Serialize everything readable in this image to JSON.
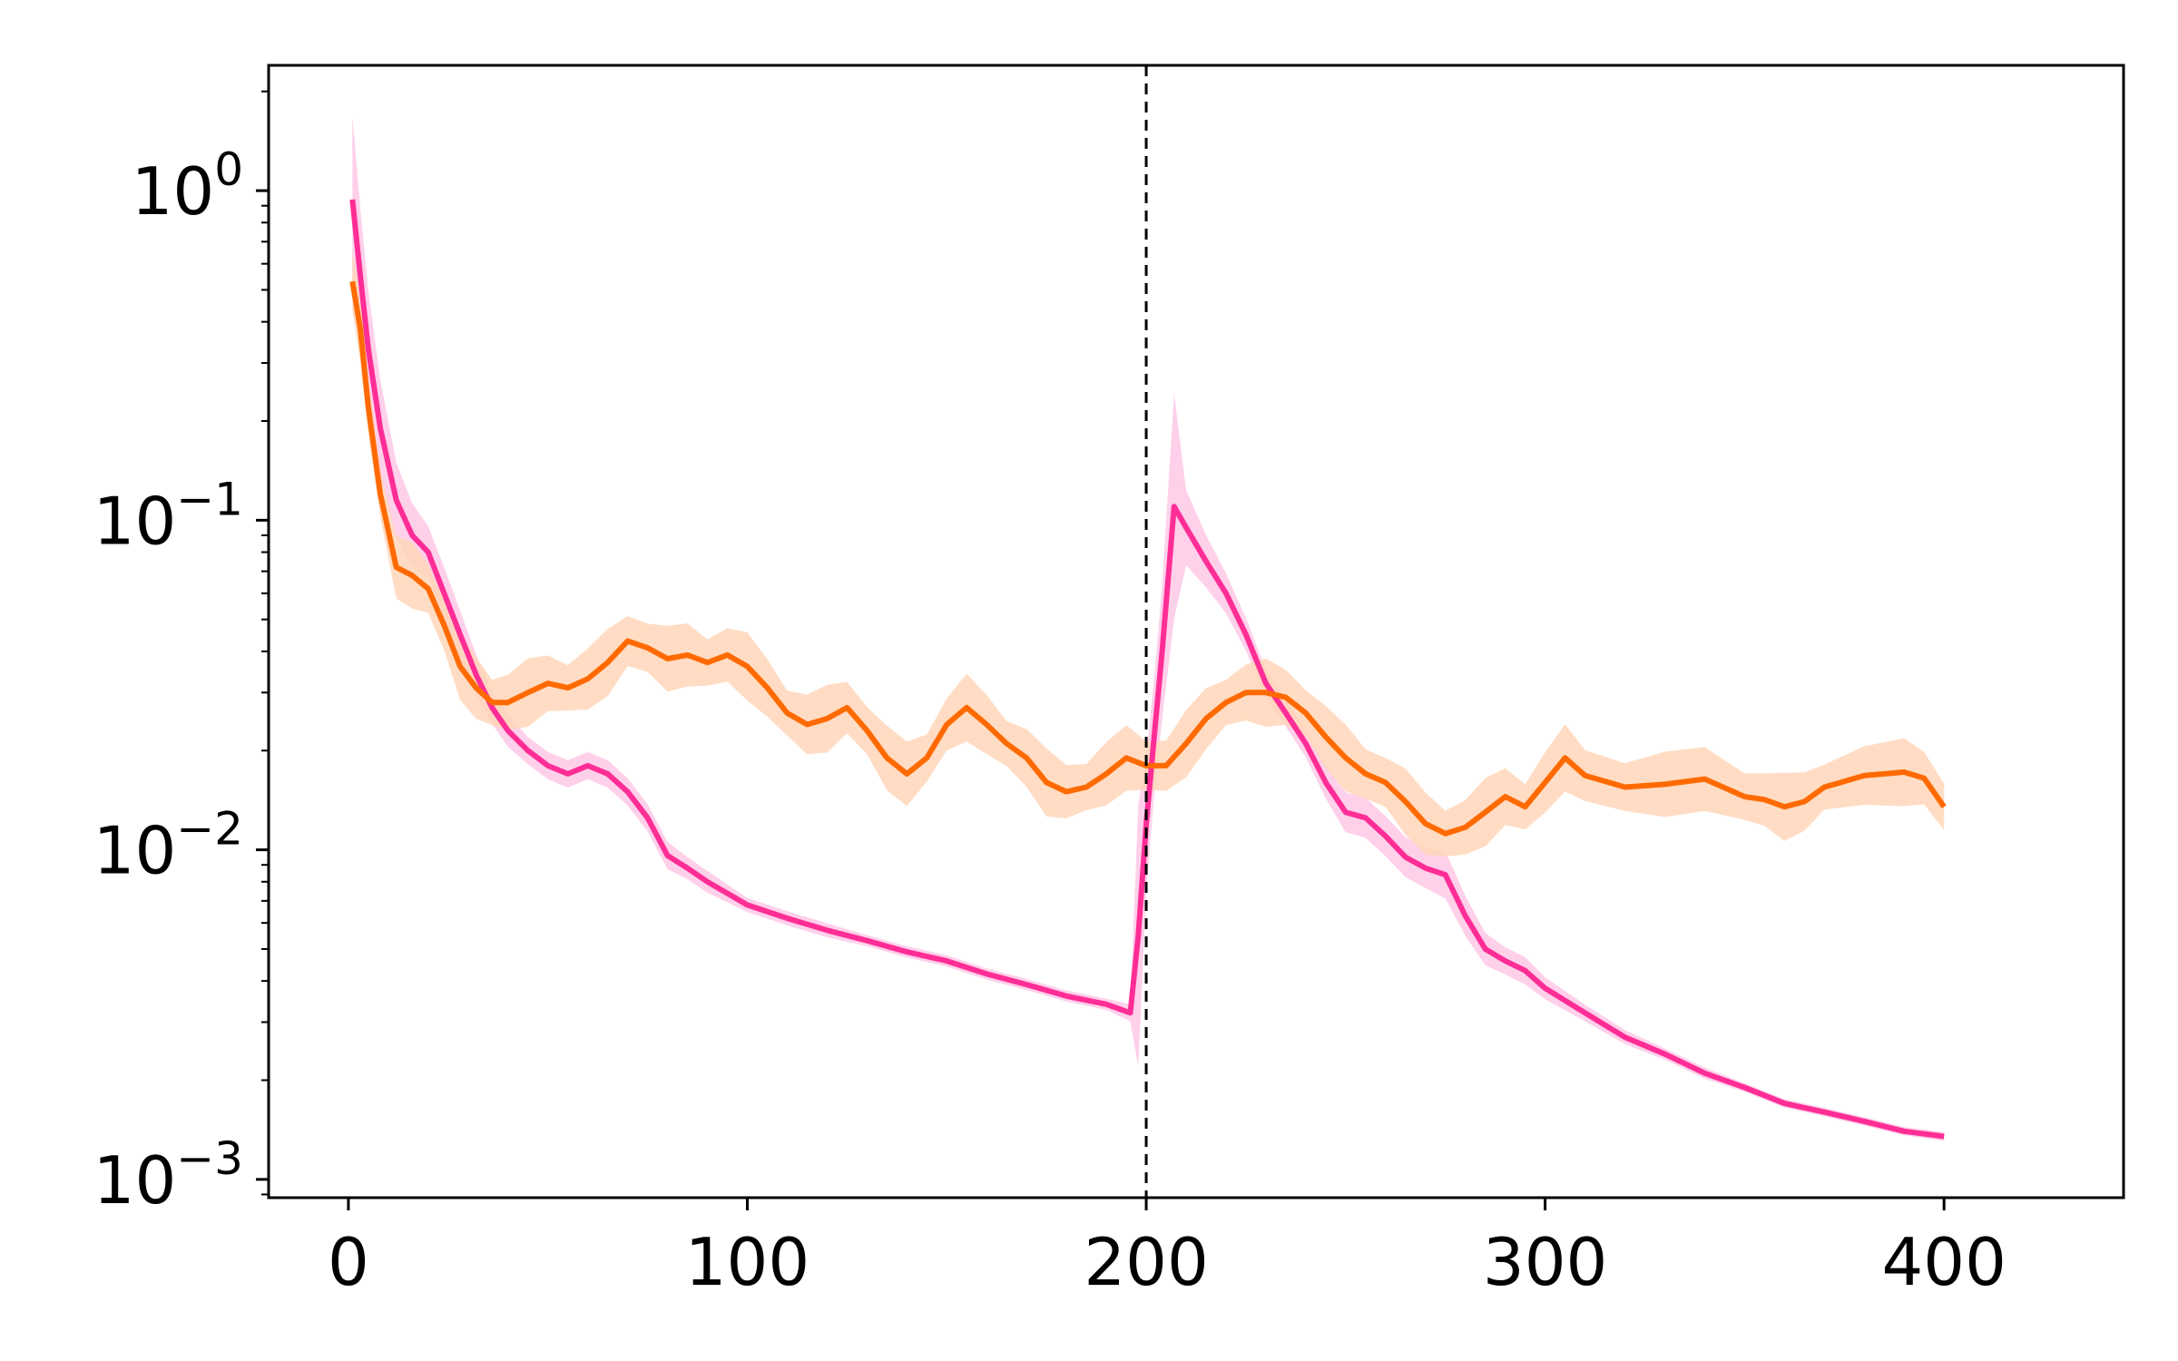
{
  "chart_data": {
    "type": "line",
    "title": "",
    "xlabel": "",
    "ylabel": "",
    "xlim": [
      -20,
      445
    ],
    "ylim": [
      0.00088,
      2.4
    ],
    "yscale": "log",
    "grid": false,
    "legend": "none",
    "x_ticks": [
      {
        "value": 0,
        "label": "0"
      },
      {
        "value": 100,
        "label": "100"
      },
      {
        "value": 200,
        "label": "200"
      },
      {
        "value": 300,
        "label": "300"
      },
      {
        "value": 400,
        "label": "400"
      }
    ],
    "y_ticks": [
      {
        "value": 1,
        "base": "10",
        "exp": "0"
      },
      {
        "value": 0.1,
        "base": "10",
        "exp": "−1"
      },
      {
        "value": 0.01,
        "base": "10",
        "exp": "−2"
      },
      {
        "value": 0.001,
        "base": "10",
        "exp": "−3"
      }
    ],
    "vline": {
      "x": 200,
      "color": "#000000",
      "style": "dashed"
    },
    "series": [
      {
        "color": "#ff2d96",
        "band_color": "#ffc8e6",
        "x": [
          1,
          3,
          5,
          8,
          12,
          16,
          20,
          24,
          28,
          32,
          36,
          40,
          45,
          50,
          55,
          60,
          65,
          70,
          75,
          80,
          85,
          90,
          100,
          110,
          120,
          130,
          140,
          150,
          160,
          170,
          180,
          190,
          196,
          198,
          200,
          202,
          204,
          207,
          210,
          215,
          220,
          225,
          230,
          235,
          240,
          245,
          250,
          255,
          260,
          265,
          270,
          275,
          280,
          285,
          290,
          295,
          300,
          310,
          320,
          330,
          340,
          350,
          360,
          370,
          380,
          390,
          400
        ],
        "y": [
          0.94,
          0.55,
          0.33,
          0.19,
          0.115,
          0.09,
          0.08,
          0.06,
          0.045,
          0.034,
          0.027,
          0.023,
          0.02,
          0.018,
          0.017,
          0.018,
          0.017,
          0.015,
          0.0125,
          0.0096,
          0.0088,
          0.008,
          0.0068,
          0.0062,
          0.0057,
          0.0053,
          0.0049,
          0.0046,
          0.0042,
          0.0039,
          0.0036,
          0.0034,
          0.0032,
          0.0055,
          0.012,
          0.022,
          0.04,
          0.11,
          0.095,
          0.075,
          0.06,
          0.045,
          0.032,
          0.026,
          0.021,
          0.016,
          0.013,
          0.0125,
          0.011,
          0.0095,
          0.0088,
          0.0084,
          0.0063,
          0.005,
          0.0046,
          0.0043,
          0.0038,
          0.0032,
          0.0027,
          0.0024,
          0.0021,
          0.0019,
          0.0017,
          0.0016,
          0.0015,
          0.0014,
          0.00135
        ],
        "band_spread": [
          1.8,
          1.6,
          1.5,
          1.4,
          1.3,
          1.25,
          1.2,
          1.2,
          1.18,
          1.15,
          1.12,
          1.12,
          1.1,
          1.1,
          1.1,
          1.1,
          1.1,
          1.1,
          1.1,
          1.1,
          1.08,
          1.08,
          1.05,
          1.05,
          1.05,
          1.04,
          1.04,
          1.04,
          1.04,
          1.04,
          1.04,
          1.04,
          1.06,
          2.5,
          1.6,
          1.5,
          1.6,
          2.2,
          1.3,
          1.2,
          1.15,
          1.12,
          1.1,
          1.1,
          1.1,
          1.12,
          1.15,
          1.15,
          1.15,
          1.15,
          1.15,
          1.18,
          1.15,
          1.12,
          1.1,
          1.1,
          1.08,
          1.06,
          1.05,
          1.04,
          1.04,
          1.03,
          1.03,
          1.03,
          1.03,
          1.03,
          1.03
        ]
      },
      {
        "color": "#ff6a00",
        "band_color": "#ffd6b8",
        "x": [
          1,
          3,
          5,
          8,
          12,
          16,
          20,
          24,
          28,
          32,
          36,
          40,
          45,
          50,
          55,
          60,
          65,
          70,
          75,
          80,
          85,
          90,
          95,
          100,
          105,
          110,
          115,
          120,
          125,
          130,
          135,
          140,
          145,
          150,
          155,
          160,
          165,
          170,
          175,
          180,
          185,
          190,
          195,
          200,
          205,
          210,
          215,
          220,
          225,
          230,
          235,
          240,
          245,
          250,
          255,
          260,
          265,
          270,
          275,
          280,
          285,
          290,
          295,
          300,
          305,
          310,
          320,
          330,
          340,
          350,
          355,
          360,
          365,
          370,
          380,
          390,
          395,
          400
        ],
        "y": [
          0.53,
          0.38,
          0.22,
          0.12,
          0.072,
          0.068,
          0.062,
          0.048,
          0.036,
          0.031,
          0.028,
          0.028,
          0.03,
          0.032,
          0.031,
          0.033,
          0.037,
          0.043,
          0.041,
          0.038,
          0.039,
          0.037,
          0.039,
          0.036,
          0.031,
          0.026,
          0.024,
          0.025,
          0.027,
          0.023,
          0.019,
          0.017,
          0.019,
          0.024,
          0.027,
          0.024,
          0.021,
          0.019,
          0.016,
          0.015,
          0.0155,
          0.017,
          0.019,
          0.018,
          0.018,
          0.021,
          0.025,
          0.028,
          0.03,
          0.03,
          0.029,
          0.026,
          0.022,
          0.019,
          0.017,
          0.016,
          0.014,
          0.012,
          0.0112,
          0.0117,
          0.013,
          0.0145,
          0.0135,
          0.016,
          0.019,
          0.0168,
          0.0155,
          0.0158,
          0.0164,
          0.0145,
          0.0142,
          0.0135,
          0.014,
          0.0155,
          0.0168,
          0.0172,
          0.0165,
          0.0135
        ]
      }
    ]
  }
}
